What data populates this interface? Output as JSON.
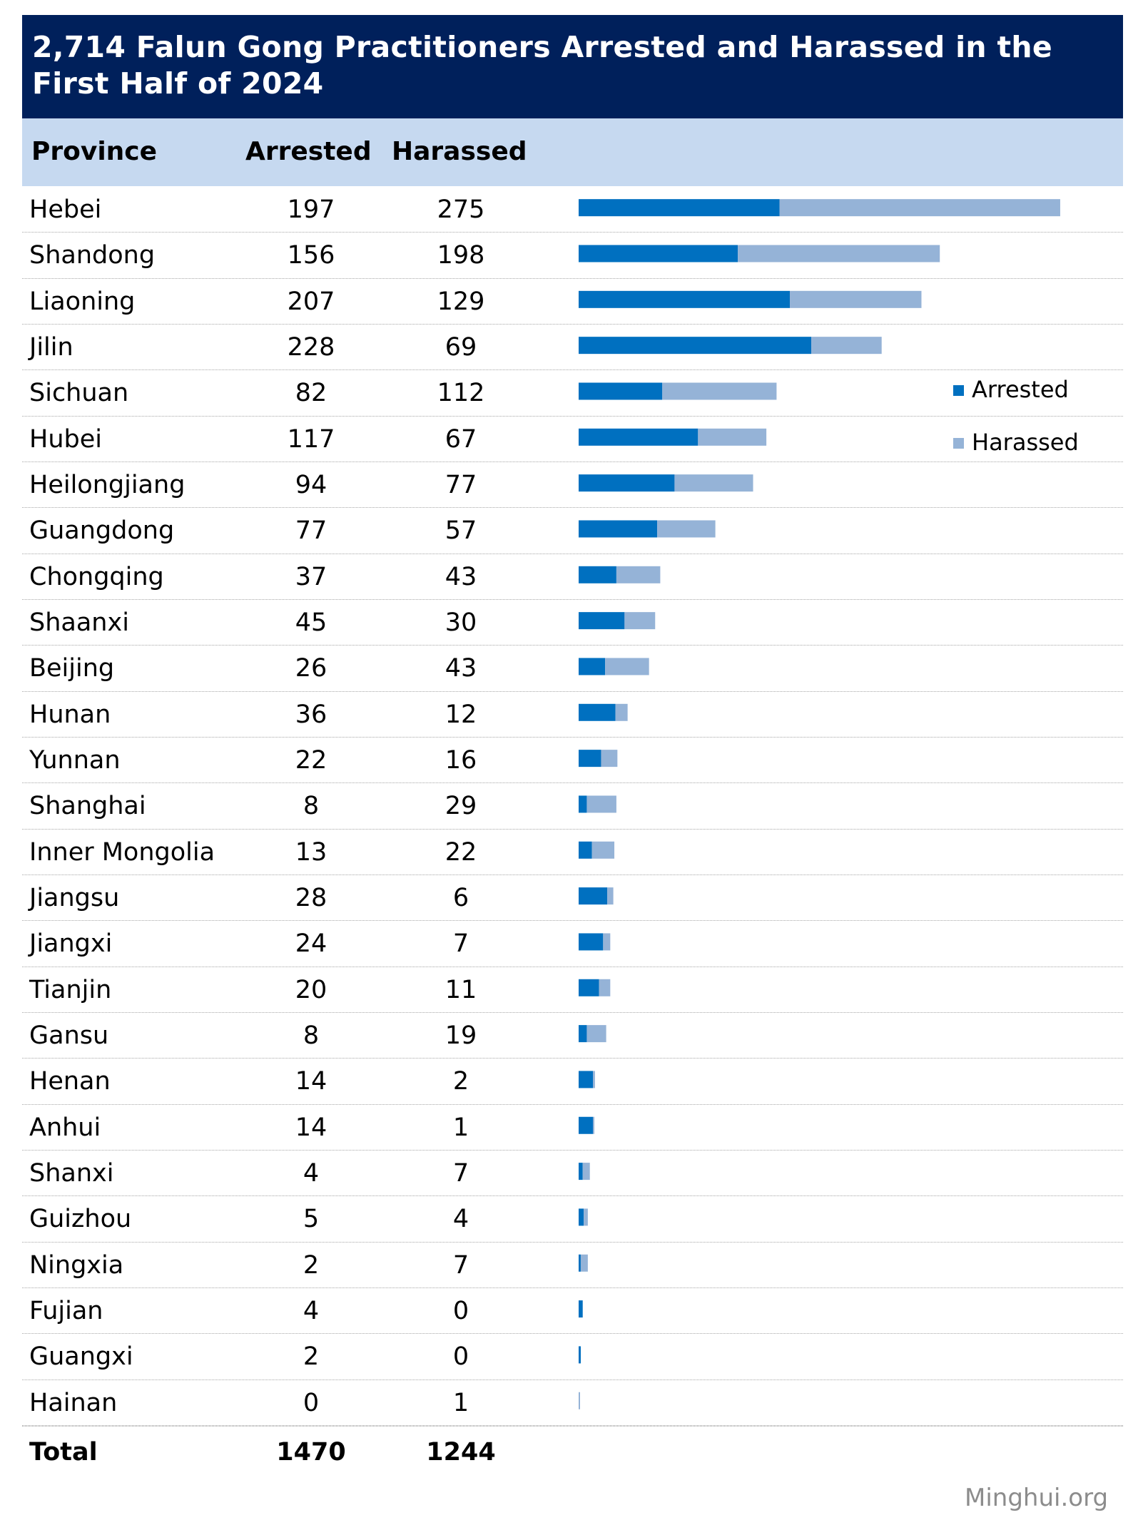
{
  "title": "2,714 Falun Gong Practitioners Arrested and Harassed in the First Half of 2024",
  "headers": {
    "province": "Province",
    "arrested": "Arrested",
    "harassed": "Harassed"
  },
  "colors": {
    "title_bg": "#00205b",
    "header_bg": "#c6d9f0",
    "arrested": "#0070c0",
    "harassed": "#95b3d7"
  },
  "legend": {
    "arrested": "Arrested",
    "harassed": "Harassed",
    "placement": "right"
  },
  "total": {
    "label": "Total",
    "arrested": "1470",
    "harassed": "1244"
  },
  "watermark": "Minghui.org",
  "chart_data": {
    "type": "bar",
    "orientation": "horizontal",
    "stacked": true,
    "categories": [
      "Hebei",
      "Shandong",
      "Liaoning",
      "Jilin",
      "Sichuan",
      "Hubei",
      "Heilongjiang",
      "Guangdong",
      "Chongqing",
      "Shaanxi",
      "Beijing",
      "Hunan",
      "Yunnan",
      "Shanghai",
      "Inner Mongolia",
      "Jiangsu",
      "Jiangxi",
      "Tianjin",
      "Gansu",
      "Henan",
      "Anhui",
      "Shanxi",
      "Guizhou",
      "Ningxia",
      "Fujian",
      "Guangxi",
      "Hainan"
    ],
    "series": [
      {
        "name": "Arrested",
        "values": [
          197,
          156,
          207,
          228,
          82,
          117,
          94,
          77,
          37,
          45,
          26,
          36,
          22,
          8,
          13,
          28,
          24,
          20,
          8,
          14,
          14,
          4,
          5,
          2,
          4,
          2,
          0
        ]
      },
      {
        "name": "Harassed",
        "values": [
          275,
          198,
          129,
          69,
          112,
          67,
          77,
          57,
          43,
          30,
          43,
          12,
          16,
          29,
          22,
          6,
          7,
          11,
          19,
          2,
          1,
          7,
          4,
          7,
          0,
          0,
          1
        ]
      }
    ],
    "grid": false
  }
}
